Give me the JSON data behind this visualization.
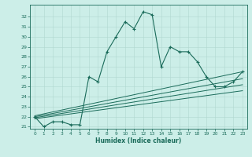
{
  "xlabel": "Humidex (Indice chaleur)",
  "bg_color": "#cceee8",
  "line_color": "#1a6b5a",
  "grid_color": "#b0d8d0",
  "main_x": [
    0,
    1,
    2,
    3,
    4,
    5,
    6,
    7,
    8,
    9,
    10,
    11,
    12,
    13,
    14,
    15,
    16,
    17,
    18,
    19,
    20,
    21,
    22,
    23
  ],
  "main_y": [
    22.0,
    21.0,
    21.5,
    21.5,
    21.2,
    21.2,
    26.0,
    25.5,
    28.5,
    30.0,
    31.5,
    30.8,
    32.5,
    32.2,
    27.0,
    29.0,
    28.5,
    28.5,
    27.5,
    26.0,
    25.0,
    25.0,
    25.5,
    26.5
  ],
  "ref_lines": [
    {
      "x0": 0,
      "y0": 22.1,
      "x1": 23,
      "y1": 26.5
    },
    {
      "x0": 0,
      "y0": 22.0,
      "x1": 23,
      "y1": 25.8
    },
    {
      "x0": 0,
      "y0": 21.9,
      "x1": 23,
      "y1": 25.2
    },
    {
      "x0": 0,
      "y0": 21.8,
      "x1": 23,
      "y1": 24.6
    }
  ],
  "ylim": [
    20.8,
    33.2
  ],
  "xlim": [
    -0.5,
    23.5
  ],
  "yticks": [
    21,
    22,
    23,
    24,
    25,
    26,
    27,
    28,
    29,
    30,
    31,
    32
  ],
  "xticks": [
    0,
    1,
    2,
    3,
    4,
    5,
    6,
    7,
    8,
    9,
    10,
    11,
    12,
    13,
    14,
    15,
    16,
    17,
    18,
    19,
    20,
    21,
    22,
    23
  ],
  "figsize": [
    3.2,
    2.0
  ],
  "dpi": 100
}
